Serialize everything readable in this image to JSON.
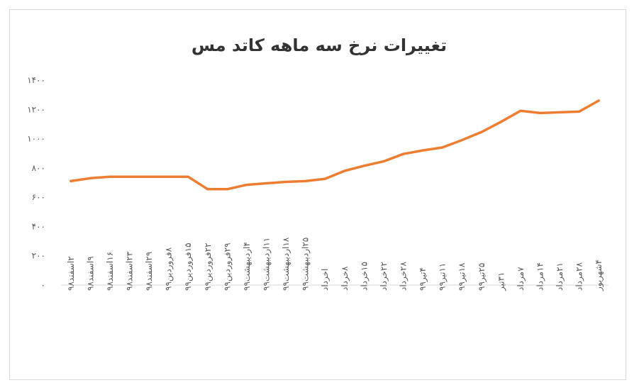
{
  "chart_data": {
    "type": "line",
    "title": "تغییرات نرخ سه ماهه کاتد مس",
    "xlabel": "",
    "ylabel": "",
    "ylim": [
      0,
      1400
    ],
    "yticks": [
      0,
      200,
      400,
      600,
      800,
      1000,
      1200,
      1400
    ],
    "ytick_labels": [
      "۰",
      "۲۰۰",
      "۴۰۰",
      "۶۰۰",
      "۸۰۰",
      "۱۰۰۰",
      "۱۲۰۰",
      "۱۴۰۰"
    ],
    "grid": false,
    "legend": "none",
    "line_color": "#ED7D31",
    "categories": [
      "۲اسفند۹۸",
      "۹اسفند۹۸",
      "۱۶اسفند۹۸",
      "۲۳اسفند۹۸",
      "۲۹اسفند۹۸",
      "۸فروردین۹۹",
      "۱۵فروردین۹۹",
      "۲۲فروردین۹۹",
      "۲۹فروردین۹۹",
      "۴اردیبهشت۹۹",
      "۱۱اردیبهشت۹۹",
      "۱۸اردیبهشت۹۹",
      "۲۵اردیبهشت۹۹",
      "اخرداد",
      "۸خرداد",
      "۱۵خرداد",
      "۲۲خرداد",
      "۲۸خرداد",
      "۴تیر۹۹",
      "۱۱تیر۹۹",
      "۱۸تیر۹۹",
      "۲۵تیر۹۹",
      "۳۱تیر",
      "۷مرداد",
      "۱۴مرداد",
      "۲۱مرداد",
      "۲۸مرداد",
      "۴شهریور"
    ],
    "series": [
      {
        "values": [
          710,
          730,
          740,
          740,
          740,
          740,
          740,
          655,
          655,
          685,
          695,
          705,
          710,
          725,
          780,
          815,
          845,
          895,
          920,
          940,
          990,
          1045,
          1115,
          1190,
          1175,
          1180,
          1185,
          1260
        ]
      }
    ]
  }
}
